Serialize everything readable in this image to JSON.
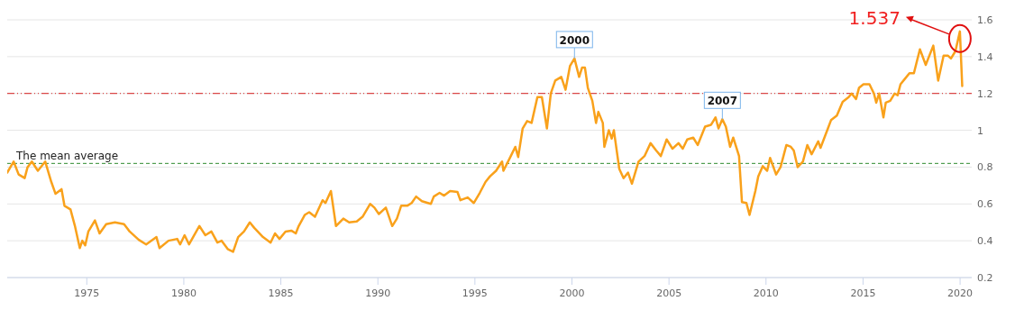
{
  "chart_data": {
    "type": "line",
    "x": [
      1970.9,
      1971.23,
      1971.49,
      1971.8,
      1971.95,
      1972.17,
      1972.48,
      1972.86,
      1973.17,
      1973.39,
      1973.7,
      1973.85,
      1974.16,
      1974.39,
      1974.64,
      1974.77,
      1974.92,
      1975.08,
      1975.42,
      1975.66,
      1976.0,
      1976.45,
      1976.92,
      1977.21,
      1977.68,
      1978.06,
      1978.59,
      1978.75,
      1979.21,
      1979.66,
      1979.81,
      1980.04,
      1980.27,
      1980.8,
      1981.11,
      1981.42,
      1981.73,
      1981.95,
      1982.26,
      1982.54,
      1982.8,
      1983.1,
      1983.4,
      1983.63,
      1984.08,
      1984.47,
      1984.7,
      1984.93,
      1985.24,
      1985.54,
      1985.77,
      1985.92,
      1986.23,
      1986.46,
      1986.76,
      1987.15,
      1987.3,
      1987.58,
      1987.84,
      1988.22,
      1988.52,
      1988.91,
      1989.21,
      1989.6,
      1989.82,
      1990.05,
      1990.41,
      1990.74,
      1990.98,
      1991.2,
      1991.51,
      1991.74,
      1991.97,
      1992.27,
      1992.73,
      1992.88,
      1993.18,
      1993.41,
      1993.72,
      1994.1,
      1994.25,
      1994.63,
      1994.94,
      1995.25,
      1995.55,
      1995.78,
      1996.09,
      1996.4,
      1996.47,
      1996.85,
      1997.08,
      1997.23,
      1997.46,
      1997.69,
      1997.92,
      1998.22,
      1998.45,
      1998.71,
      1998.91,
      1999.14,
      1999.45,
      1999.67,
      1999.9,
      2000.13,
      2000.37,
      2000.52,
      2000.67,
      2000.82,
      2001.05,
      2001.24,
      2001.36,
      2001.59,
      2001.67,
      2001.9,
      2002.05,
      2002.16,
      2002.44,
      2002.66,
      2002.89,
      2003.09,
      2003.43,
      2003.74,
      2004.05,
      2004.34,
      2004.58,
      2004.88,
      2005.18,
      2005.49,
      2005.71,
      2005.94,
      2006.25,
      2006.48,
      2006.86,
      2007.17,
      2007.4,
      2007.55,
      2007.75,
      2007.93,
      2008.15,
      2008.31,
      2008.61,
      2008.76,
      2008.99,
      2009.15,
      2009.45,
      2009.6,
      2009.83,
      2010.06,
      2010.21,
      2010.52,
      2010.75,
      2011.05,
      2011.28,
      2011.43,
      2011.63,
      2011.9,
      2012.13,
      2012.35,
      2012.69,
      2012.81,
      2013.19,
      2013.35,
      2013.65,
      2013.95,
      2014.26,
      2014.41,
      2014.64,
      2014.79,
      2015.02,
      2015.33,
      2015.56,
      2015.68,
      2015.83,
      2016.05,
      2016.17,
      2016.4,
      2016.63,
      2016.78,
      2016.93,
      2017.16,
      2017.39,
      2017.62,
      2017.93,
      2018.23,
      2018.62,
      2018.87,
      2019.15,
      2019.38,
      2019.53,
      2019.76,
      2019.99,
      2020.11
    ],
    "series": [
      {
        "color": "#f9a11b",
        "values": [
          0.77,
          0.83,
          0.76,
          0.74,
          0.8,
          0.83,
          0.78,
          0.83,
          0.72,
          0.655,
          0.68,
          0.59,
          0.57,
          0.48,
          0.36,
          0.4,
          0.375,
          0.45,
          0.51,
          0.44,
          0.49,
          0.5,
          0.49,
          0.45,
          0.405,
          0.38,
          0.42,
          0.36,
          0.4,
          0.41,
          0.38,
          0.43,
          0.38,
          0.48,
          0.43,
          0.45,
          0.39,
          0.4,
          0.355,
          0.34,
          0.42,
          0.45,
          0.5,
          0.47,
          0.42,
          0.39,
          0.44,
          0.41,
          0.45,
          0.455,
          0.44,
          0.48,
          0.54,
          0.555,
          0.53,
          0.62,
          0.605,
          0.67,
          0.48,
          0.52,
          0.5,
          0.505,
          0.53,
          0.6,
          0.58,
          0.545,
          0.58,
          0.48,
          0.52,
          0.59,
          0.59,
          0.605,
          0.64,
          0.615,
          0.6,
          0.64,
          0.66,
          0.645,
          0.67,
          0.665,
          0.62,
          0.635,
          0.605,
          0.66,
          0.72,
          0.75,
          0.78,
          0.83,
          0.78,
          0.86,
          0.91,
          0.855,
          1.01,
          1.05,
          1.04,
          1.18,
          1.18,
          1.01,
          1.2,
          1.27,
          1.29,
          1.22,
          1.35,
          1.39,
          1.29,
          1.34,
          1.34,
          1.23,
          1.16,
          1.04,
          1.1,
          1.04,
          0.91,
          1.0,
          0.955,
          1.0,
          0.79,
          0.74,
          0.77,
          0.71,
          0.83,
          0.86,
          0.93,
          0.89,
          0.86,
          0.95,
          0.9,
          0.93,
          0.9,
          0.95,
          0.96,
          0.92,
          1.02,
          1.03,
          1.07,
          1.01,
          1.06,
          1.02,
          0.91,
          0.96,
          0.86,
          0.61,
          0.605,
          0.54,
          0.67,
          0.75,
          0.805,
          0.78,
          0.85,
          0.76,
          0.8,
          0.92,
          0.91,
          0.89,
          0.8,
          0.83,
          0.92,
          0.87,
          0.94,
          0.905,
          1.01,
          1.055,
          1.08,
          1.155,
          1.18,
          1.2,
          1.17,
          1.23,
          1.25,
          1.25,
          1.2,
          1.15,
          1.2,
          1.07,
          1.15,
          1.16,
          1.2,
          1.19,
          1.25,
          1.28,
          1.31,
          1.31,
          1.44,
          1.355,
          1.46,
          1.27,
          1.405,
          1.405,
          1.39,
          1.43,
          1.537,
          1.24
        ]
      }
    ],
    "xlim": [
      1970.9,
      2020.6
    ],
    "xticks": [
      1975,
      1980,
      1985,
      1990,
      1995,
      2000,
      2005,
      2010,
      2015,
      2020
    ],
    "ylim": [
      0.2,
      1.6
    ],
    "yticks": [
      0.2,
      0.4,
      0.6,
      0.8,
      1,
      1.2,
      1.4,
      1.6
    ],
    "grid": "y",
    "ref_lines": [
      {
        "axis": "y",
        "value": 0.82,
        "label": "The mean average",
        "color": "#2e8b2e",
        "line_style": "dashed"
      },
      {
        "axis": "y",
        "value": 1.2,
        "label": null,
        "color": "#d62020",
        "line_style": "dashdot"
      }
    ],
    "annotations": [
      {
        "text": "2000",
        "x": 2000.13,
        "y": 1.39
      },
      {
        "text": "2007",
        "x": 2007.75,
        "y": 1.06
      },
      "1.537"
    ]
  }
}
